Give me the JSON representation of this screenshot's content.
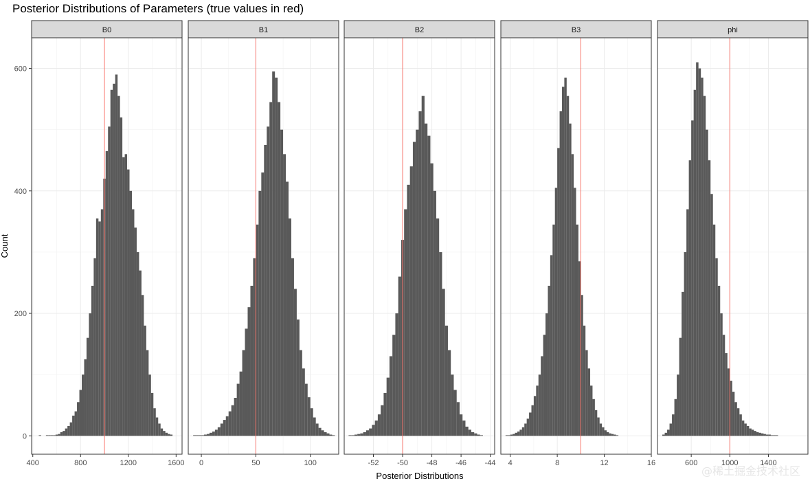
{
  "chart_data": {
    "type": "bar",
    "title": "Posterior Distributions of Parameters (true values in red)",
    "xlabel": "Posterior Distributions",
    "ylabel": "Count",
    "ylim": [
      -30,
      650
    ],
    "yticks": [
      0,
      200,
      400,
      600
    ],
    "grid": true,
    "true_value_color": "#f8766d",
    "bar_color": "#595959",
    "panels": [
      {
        "name": "B0",
        "xlim": [
          390,
          1650
        ],
        "xticks": [
          400,
          800,
          1200,
          1600
        ],
        "xtick_labels": [
          "400",
          "800",
          "1200",
          "1600"
        ],
        "true_value": 1000,
        "bins": {
          "start": 450,
          "width": 20,
          "counts": [
            1,
            0,
            0,
            1,
            1,
            1,
            1,
            2,
            3,
            6,
            8,
            12,
            16,
            22,
            33,
            40,
            55,
            75,
            100,
            125,
            160,
            200,
            245,
            290,
            355,
            350,
            370,
            420,
            465,
            505,
            565,
            575,
            590,
            555,
            520,
            455,
            460,
            435,
            400,
            370,
            340,
            300,
            270,
            230,
            180,
            140,
            100,
            70,
            45,
            30,
            20,
            12,
            8,
            5,
            3,
            2
          ]
        }
      },
      {
        "name": "B1",
        "xlim": [
          -12,
          126
        ],
        "xticks": [
          0,
          50,
          100
        ],
        "xtick_labels": [
          "0",
          "50",
          "100"
        ],
        "true_value": 50,
        "bins": {
          "start": -10,
          "width": 2.5,
          "counts": [
            0,
            1,
            1,
            1,
            1,
            2,
            3,
            5,
            7,
            10,
            14,
            20,
            26,
            32,
            40,
            50,
            62,
            85,
            105,
            140,
            175,
            210,
            245,
            290,
            345,
            400,
            430,
            475,
            505,
            545,
            595,
            585,
            545,
            500,
            460,
            415,
            355,
            290,
            240,
            190,
            140,
            110,
            85,
            63,
            45,
            30,
            20,
            13,
            9,
            6,
            4,
            2,
            1
          ]
        }
      },
      {
        "name": "B2",
        "xlim": [
          -54,
          -43.7
        ],
        "xticks": [
          -52,
          -50,
          -48,
          -46,
          -44
        ],
        "xtick_labels": [
          "-52",
          "-50",
          "-48",
          "-46",
          "-44"
        ],
        "true_value": -50,
        "bins": {
          "start": -53.7,
          "width": 0.2,
          "counts": [
            1,
            1,
            2,
            3,
            4,
            6,
            9,
            12,
            18,
            25,
            35,
            50,
            70,
            95,
            130,
            165,
            200,
            260,
            320,
            370,
            410,
            440,
            480,
            500,
            530,
            555,
            510,
            490,
            445,
            400,
            355,
            300,
            240,
            180,
            140,
            100,
            75,
            55,
            35,
            25,
            15,
            10,
            6,
            4,
            2,
            1
          ]
        }
      },
      {
        "name": "B3",
        "xlim": [
          3.2,
          16
        ],
        "xticks": [
          4,
          8,
          12,
          16
        ],
        "xtick_labels": [
          "4",
          "8",
          "12",
          "16"
        ],
        "true_value": 10,
        "bins": {
          "start": 3.6,
          "width": 0.2,
          "counts": [
            1,
            1,
            2,
            3,
            5,
            7,
            10,
            14,
            20,
            28,
            38,
            50,
            65,
            82,
            100,
            130,
            165,
            200,
            245,
            295,
            345,
            405,
            470,
            530,
            570,
            585,
            555,
            510,
            460,
            405,
            345,
            285,
            230,
            180,
            140,
            110,
            82,
            60,
            42,
            30,
            20,
            14,
            9,
            6,
            4,
            3,
            2,
            1
          ]
        }
      },
      {
        "name": "phi",
        "xlim": [
          250,
          1810
        ],
        "xticks": [
          600,
          1000,
          1400
        ],
        "xtick_labels": [
          "600",
          "1000",
          "1400"
        ],
        "true_value": 1000,
        "bins": {
          "start": 300,
          "width": 25,
          "counts": [
            2,
            5,
            10,
            20,
            35,
            60,
            100,
            160,
            235,
            300,
            370,
            450,
            515,
            565,
            610,
            600,
            585,
            555,
            500,
            450,
            395,
            345,
            290,
            245,
            200,
            165,
            135,
            110,
            90,
            72,
            55,
            45,
            35,
            25,
            20,
            16,
            12,
            10,
            8,
            6,
            5,
            4,
            3,
            2,
            2,
            1,
            1,
            1
          ]
        }
      }
    ]
  },
  "watermark": "@稀土掘金技术社区"
}
